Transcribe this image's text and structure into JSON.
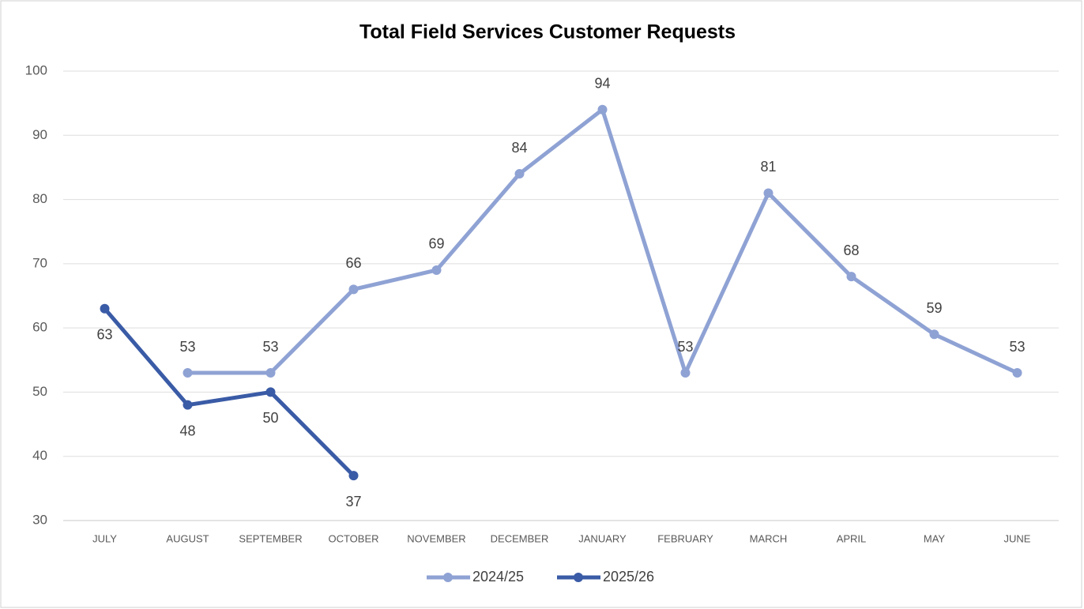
{
  "chart_data": {
    "type": "line",
    "title": "Total Field Services Customer Requests",
    "categories": [
      "JULY",
      "AUGUST",
      "SEPTEMBER",
      "OCTOBER",
      "NOVEMBER",
      "DECEMBER",
      "JANUARY",
      "FEBRUARY",
      "MARCH",
      "APRIL",
      "MAY",
      "JUNE"
    ],
    "series": [
      {
        "name": "2024/25",
        "color": "#8fa2d4",
        "values": [
          null,
          53,
          53,
          66,
          69,
          84,
          94,
          53,
          81,
          68,
          59,
          53
        ]
      },
      {
        "name": "2025/26",
        "color": "#3a5ba6",
        "values": [
          63,
          48,
          50,
          37,
          null,
          null,
          null,
          null,
          null,
          null,
          null,
          null
        ]
      }
    ],
    "ylim": [
      30,
      100
    ],
    "yticks": [
      30,
      40,
      50,
      60,
      70,
      80,
      90,
      100
    ],
    "grid": true,
    "legend": "bottom"
  }
}
